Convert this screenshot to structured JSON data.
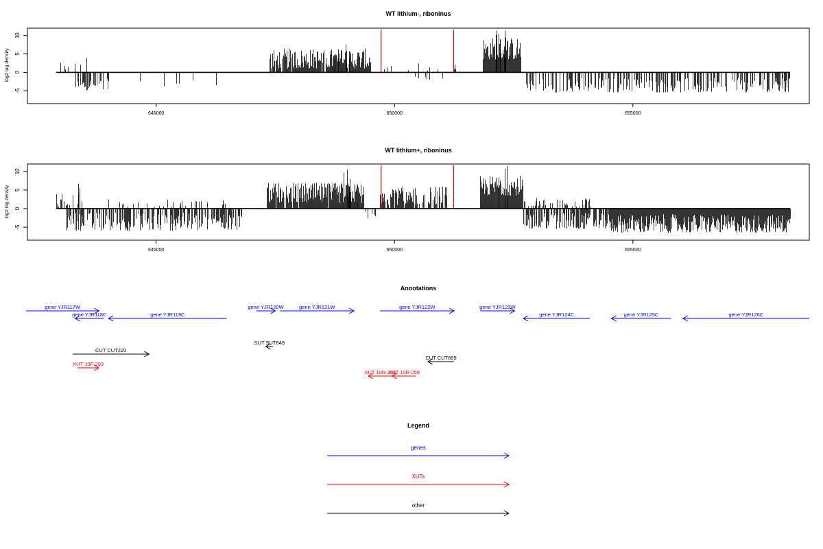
{
  "panels": [
    {
      "title": "WT lithium-, riboninus",
      "ylabel": "log2 tag density",
      "yticks": [
        -5,
        0,
        5,
        10
      ],
      "ylim": [
        -8.5,
        12
      ],
      "xlim": [
        642300,
        658700
      ],
      "xticks": [
        645000,
        650000,
        655000
      ],
      "xtick_labels": [
        "645000",
        "650000",
        "655000"
      ],
      "red_lines_x": [
        649720,
        651240
      ],
      "chart_data": {
        "type": "bar",
        "xlabel": "",
        "ylabel": "log2 tag density",
        "ylim": [
          -8.5,
          12
        ],
        "grid": false,
        "segments": [
          {
            "x": [
              642900,
              643300
            ],
            "density": 0.25,
            "min": 0.5,
            "max": 3
          },
          {
            "x": [
              643300,
              644000
            ],
            "density": 0.5,
            "min": -5,
            "max": -1.5
          },
          {
            "x": [
              643200,
              643600
            ],
            "density": 0.15,
            "min": 1,
            "max": 7
          },
          {
            "x": [
              644400,
              646400
            ],
            "density": 0.05,
            "min": -4,
            "max": -1
          },
          {
            "x": [
              647380,
              649500
            ],
            "density": 0.95,
            "min": 1,
            "max": 6.5
          },
          {
            "x": [
              648700,
              649100
            ],
            "density": 0.4,
            "min": 3,
            "max": 7.8
          },
          {
            "x": [
              649150,
              649400
            ],
            "density": 0.08,
            "min": -3,
            "max": -1
          },
          {
            "x": [
              649700,
              651300
            ],
            "density": 0.1,
            "min": 0.5,
            "max": 2.5
          },
          {
            "x": [
              650300,
              651200
            ],
            "density": 0.05,
            "min": -2,
            "max": -0.5
          },
          {
            "x": [
              651850,
              652650
            ],
            "density": 1.0,
            "min": 3.5,
            "max": 9.5
          },
          {
            "x": [
              652100,
              652400
            ],
            "density": 0.3,
            "min": 7,
            "max": 11.5
          },
          {
            "x": [
              652750,
              658300
            ],
            "density": 0.45,
            "min": -5.5,
            "max": -1.5
          },
          {
            "x": [
              654200,
              654500
            ],
            "density": 0.05,
            "min": 1,
            "max": 3
          }
        ]
      }
    },
    {
      "title": "WT lithium+, riboninus",
      "ylabel": "log2 tag density",
      "yticks": [
        -5,
        0,
        5,
        10
      ],
      "ylim": [
        -8.5,
        12
      ],
      "xlim": [
        642300,
        658700
      ],
      "xticks": [
        645000,
        650000,
        655000
      ],
      "xtick_labels": [
        "645000",
        "650000",
        "655000"
      ],
      "red_lines_x": [
        649720,
        651240
      ],
      "chart_data": {
        "type": "bar",
        "xlabel": "",
        "ylabel": "log2 tag density",
        "ylim": [
          -8.5,
          12
        ],
        "grid": false,
        "segments": [
          {
            "x": [
              642900,
              643500
            ],
            "density": 0.4,
            "min": 0.5,
            "max": 4.5
          },
          {
            "x": [
              643200,
              643500
            ],
            "density": 0.1,
            "min": 3,
            "max": 7
          },
          {
            "x": [
              643100,
              646800
            ],
            "density": 0.6,
            "min": -6,
            "max": -1
          },
          {
            "x": [
              644000,
              646500
            ],
            "density": 0.15,
            "min": 0.5,
            "max": 2.5
          },
          {
            "x": [
              647320,
              649350
            ],
            "density": 0.95,
            "min": 1.5,
            "max": 7
          },
          {
            "x": [
              648900,
              649250
            ],
            "density": 0.4,
            "min": 4,
            "max": 11.5
          },
          {
            "x": [
              649350,
              649700
            ],
            "density": 0.2,
            "min": -3,
            "max": -0.5
          },
          {
            "x": [
              649700,
              651100
            ],
            "density": 0.8,
            "min": 1,
            "max": 6
          },
          {
            "x": [
              651800,
              652700
            ],
            "density": 1.0,
            "min": 3.5,
            "max": 9
          },
          {
            "x": [
              652100,
              652400
            ],
            "density": 0.3,
            "min": 7,
            "max": 11.5
          },
          {
            "x": [
              652700,
              654100
            ],
            "density": 0.4,
            "min": 0.5,
            "max": 3
          },
          {
            "x": [
              652700,
              654500
            ],
            "density": 0.7,
            "min": -5.5,
            "max": -1
          },
          {
            "x": [
              654500,
              658300
            ],
            "density": 1.0,
            "min": -6.5,
            "max": -1.5
          }
        ]
      }
    }
  ],
  "annotations": {
    "title": "Annotations",
    "items": [
      {
        "label": "gene YJR117W",
        "start": 642200,
        "end": 643800,
        "strand": "+",
        "row": 0,
        "kind": "gene"
      },
      {
        "label": "gene YJR118C",
        "start": 643300,
        "end": 643900,
        "strand": "-",
        "row": 1,
        "kind": "gene"
      },
      {
        "label": "gene YJR119C",
        "start": 644000,
        "end": 646480,
        "strand": "-",
        "row": 1,
        "kind": "gene"
      },
      {
        "label": "gene YJR120W",
        "start": 647100,
        "end": 647500,
        "strand": "+",
        "row": 0,
        "kind": "gene"
      },
      {
        "label": "gene YJR121W",
        "start": 647600,
        "end": 649150,
        "strand": "+",
        "row": 0,
        "kind": "gene"
      },
      {
        "label": "gene YJR122W",
        "start": 649700,
        "end": 651250,
        "strand": "+",
        "row": 0,
        "kind": "gene"
      },
      {
        "label": "gene YJR123W",
        "start": 651800,
        "end": 652520,
        "strand": "+",
        "row": 0,
        "kind": "gene"
      },
      {
        "label": "gene YJR124C",
        "start": 652700,
        "end": 654100,
        "strand": "-",
        "row": 1,
        "kind": "gene"
      },
      {
        "label": "gene YJR125C",
        "start": 654550,
        "end": 655800,
        "strand": "-",
        "row": 1,
        "kind": "gene"
      },
      {
        "label": "gene YJR126C",
        "start": 656050,
        "end": 658700,
        "strand": "-",
        "row": 1,
        "kind": "gene"
      },
      {
        "label": "SUT SUT649",
        "start": 647300,
        "end": 647450,
        "strand": "-",
        "row": 2,
        "kind": "other"
      },
      {
        "label": "CUT CUT220",
        "start": 643250,
        "end": 644850,
        "strand": "+",
        "row": 3,
        "kind": "other"
      },
      {
        "label": "CUT CUT699",
        "start": 650700,
        "end": 651250,
        "strand": "-",
        "row": 4,
        "kind": "other"
      },
      {
        "label": "XUT 10F-293",
        "start": 643350,
        "end": 643800,
        "strand": "+",
        "row": 5,
        "kind": "xut"
      },
      {
        "label": "XUT 10R-266",
        "start": 649450,
        "end": 649950,
        "strand": "-",
        "row": 6,
        "kind": "xut"
      },
      {
        "label": "XUT 10R-258",
        "start": 649950,
        "end": 650450,
        "strand": "-",
        "row": 6,
        "kind": "xut"
      }
    ]
  },
  "legend": {
    "title": "Legend",
    "items": [
      {
        "label": "genes",
        "color": "#0000ff"
      },
      {
        "label": "XUTs",
        "color": "#ff0000"
      },
      {
        "label": "other",
        "color": "#000000"
      }
    ]
  },
  "colors": {
    "gene": "#0000ff",
    "xut": "#ff0000",
    "other": "#000000",
    "marker": "#ff0000",
    "bars": "#000000"
  }
}
